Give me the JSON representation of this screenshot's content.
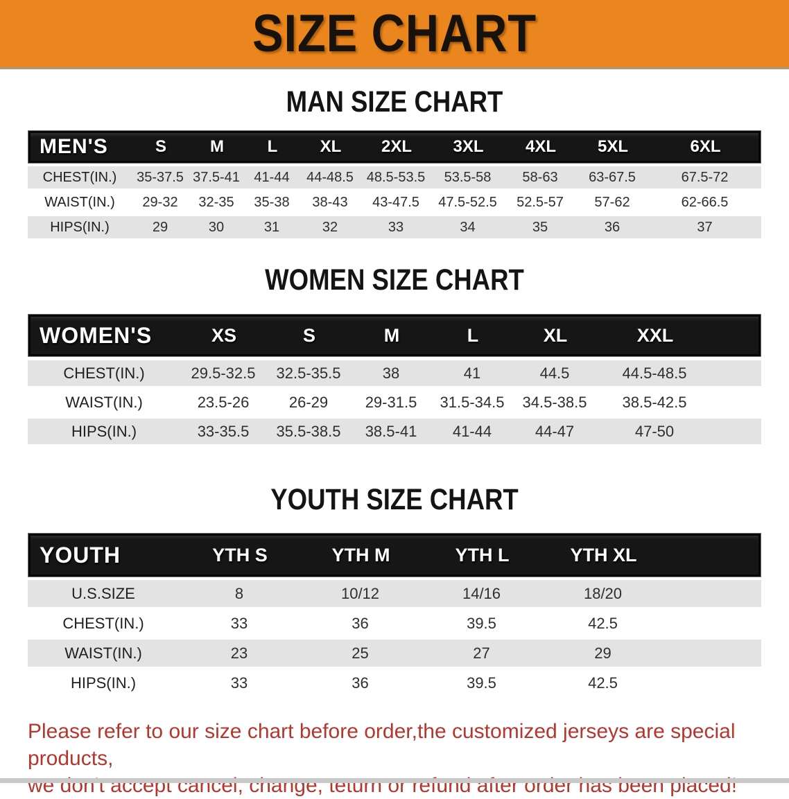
{
  "banner": {
    "title": "SIZE CHART"
  },
  "colors": {
    "banner_orange": "#EA861D",
    "table_header_black": "#161616",
    "row_stripe_gray": "#E4E3E3",
    "disclaimer_red": "#B5362D"
  },
  "sections": [
    {
      "heading": "MAN SIZE CHART",
      "header_label": "MEN'S",
      "columns": [
        "S",
        "M",
        "L",
        "XL",
        "2XL",
        "3XL",
        "4XL",
        "5XL",
        "6XL"
      ],
      "rows": [
        {
          "label": "CHEST(IN.)",
          "values": [
            "35-37.5",
            "37.5-41",
            "41-44",
            "44-48.5",
            "48.5-53.5",
            "53.5-58",
            "58-63",
            "63-67.5",
            "67.5-72"
          ]
        },
        {
          "label": "WAIST(IN.)",
          "values": [
            "29-32",
            "32-35",
            "35-38",
            "38-43",
            "43-47.5",
            "47.5-52.5",
            "52.5-57",
            "57-62",
            "62-66.5"
          ]
        },
        {
          "label": "HIPS(IN.)",
          "values": [
            "29",
            "30",
            "31",
            "32",
            "33",
            "34",
            "35",
            "36",
            "37"
          ]
        }
      ]
    },
    {
      "heading": "WOMEN SIZE CHART",
      "header_label": "WOMEN'S",
      "columns": [
        "XS",
        "S",
        "M",
        "L",
        "XL",
        "XXL"
      ],
      "rows": [
        {
          "label": "CHEST(IN.)",
          "values": [
            "29.5-32.5",
            "32.5-35.5",
            "38",
            "41",
            "44.5",
            "44.5-48.5"
          ]
        },
        {
          "label": "WAIST(IN.)",
          "values": [
            "23.5-26",
            "26-29",
            "29-31.5",
            "31.5-34.5",
            "34.5-38.5",
            "38.5-42.5"
          ]
        },
        {
          "label": "HIPS(IN.)",
          "values": [
            "33-35.5",
            "35.5-38.5",
            "38.5-41",
            "41-44",
            "44-47",
            "47-50"
          ]
        }
      ]
    },
    {
      "heading": "YOUTH SIZE CHART",
      "header_label": "YOUTH",
      "columns": [
        "YTH S",
        "YTH M",
        "YTH L",
        "YTH XL"
      ],
      "rows": [
        {
          "label": "U.S.SIZE",
          "values": [
            "8",
            "10/12",
            "14/16",
            "18/20"
          ]
        },
        {
          "label": "CHEST(IN.)",
          "values": [
            "33",
            "36",
            "39.5",
            "42.5"
          ]
        },
        {
          "label": "WAIST(IN.)",
          "values": [
            "23",
            "25",
            "27",
            "29"
          ]
        },
        {
          "label": "HIPS(IN.)",
          "values": [
            "33",
            "36",
            "39.5",
            "42.5"
          ]
        }
      ]
    }
  ],
  "disclaimer": {
    "line1": "Please refer to our size chart before order,the customized jerseys are special products,",
    "line2": "we don't accept cancel, change, teturn or refund after order has been placed!"
  }
}
